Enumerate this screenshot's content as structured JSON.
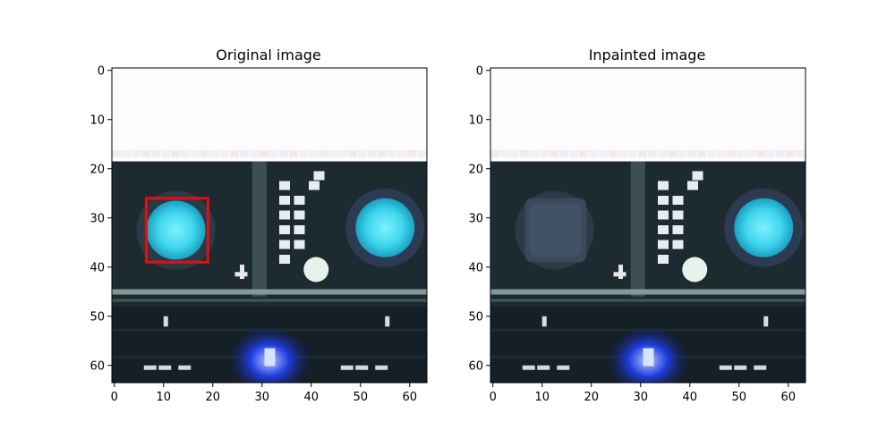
{
  "panels": [
    {
      "title": "Original image",
      "highlight_box": {
        "x0": 6.5,
        "y0": 26,
        "x1": 19,
        "y1": 39,
        "color": "#e01010"
      },
      "center_patch": "glowing-cyan-button"
    },
    {
      "title": "Inpainted image",
      "highlight_box": null,
      "center_patch": "dark-inpainted-patch"
    }
  ],
  "axes": {
    "x_ticks": [
      "0",
      "10",
      "20",
      "30",
      "40",
      "50",
      "60"
    ],
    "y_ticks": [
      "0",
      "10",
      "20",
      "30",
      "40",
      "50",
      "60"
    ],
    "x_tick_values": [
      0,
      10,
      20,
      30,
      40,
      50,
      60
    ],
    "y_tick_values": [
      0,
      10,
      20,
      30,
      40,
      50,
      60
    ],
    "range": [
      -0.5,
      63.5
    ]
  },
  "colors": {
    "console_dark": "#1d2b30",
    "cyan_glow": "#3fd6ee",
    "blue_glow": "#1f3de0",
    "rail": "#7f9a98"
  }
}
